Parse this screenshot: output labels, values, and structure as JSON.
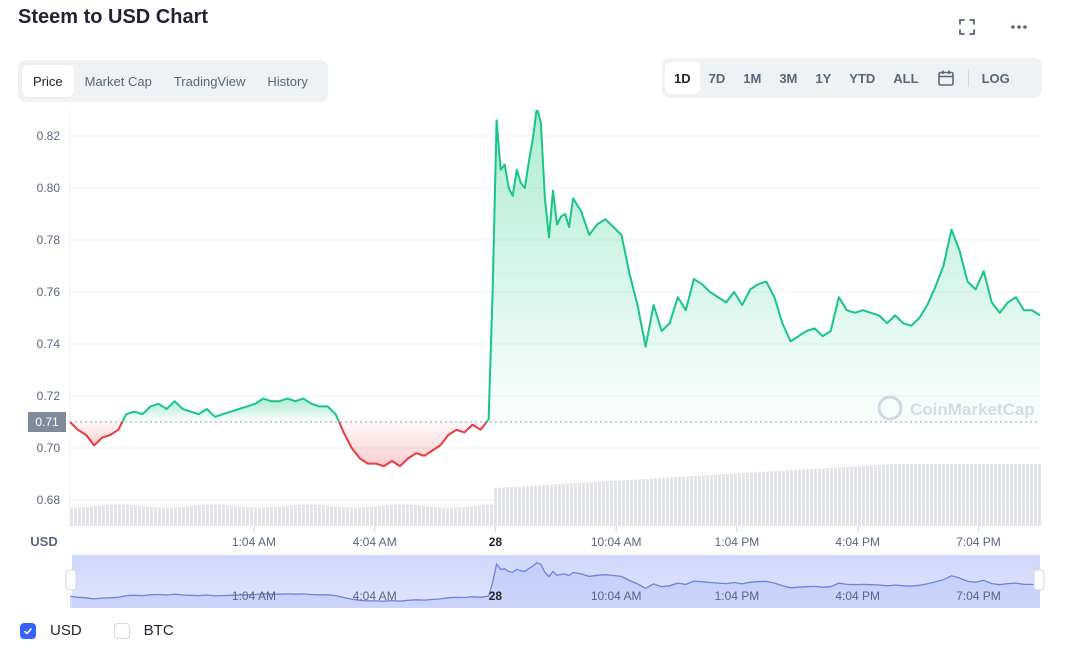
{
  "title": "Steem to USD Chart",
  "toolbar": {
    "fullscreen_icon": "fullscreen-icon",
    "more_icon": "more-icon"
  },
  "tabs": [
    {
      "label": "Price",
      "active": true
    },
    {
      "label": "Market Cap",
      "active": false
    },
    {
      "label": "TradingView",
      "active": false
    },
    {
      "label": "History",
      "active": false
    }
  ],
  "ranges": [
    {
      "label": "1D",
      "active": true
    },
    {
      "label": "7D",
      "active": false
    },
    {
      "label": "1M",
      "active": false
    },
    {
      "label": "3M",
      "active": false
    },
    {
      "label": "1Y",
      "active": false
    },
    {
      "label": "YTD",
      "active": false
    },
    {
      "label": "ALL",
      "active": false
    }
  ],
  "calendar_icon": "calendar-icon",
  "log_label": "LOG",
  "legend": [
    {
      "label": "USD",
      "checked": true
    },
    {
      "label": "BTC",
      "checked": false
    }
  ],
  "colors": {
    "up": "#16c784",
    "down": "#ea3943",
    "accent": "#3861fb",
    "grid": "#eff2f5",
    "axis_text": "#58667e"
  },
  "chart_data": {
    "type": "line",
    "y_axis_label": "USD",
    "ylim": [
      0.67,
      0.83
    ],
    "y_ticks": [
      0.68,
      0.7,
      0.72,
      0.74,
      0.76,
      0.78,
      0.8,
      0.82
    ],
    "reference_value": 0.71,
    "reference_label": "0.71",
    "x_range": [
      -3.5,
      20.6
    ],
    "x_ticks": [
      {
        "t": 1.07,
        "label": "1:04 AM"
      },
      {
        "t": 4.07,
        "label": "4:04 AM"
      },
      {
        "t": 7.07,
        "label": "28",
        "bold": true
      },
      {
        "t": 10.07,
        "label": "10:04 AM"
      },
      {
        "t": 13.07,
        "label": "1:04 PM"
      },
      {
        "t": 16.07,
        "label": "4:04 PM"
      },
      {
        "t": 19.07,
        "label": "7:04 PM"
      }
    ],
    "watermark": "CoinMarketCap",
    "series": [
      {
        "t": [
          -3.5,
          -3.3,
          -3.1,
          -2.9,
          -2.7,
          -2.5,
          -2.3,
          -2.1,
          -1.9,
          -1.7,
          -1.5,
          -1.3,
          -1.1,
          -0.9,
          -0.7,
          -0.5,
          -0.3,
          -0.1,
          0.1,
          0.3,
          0.5,
          0.7,
          0.9,
          1.1,
          1.3,
          1.5,
          1.7,
          1.9,
          2.1,
          2.3,
          2.5,
          2.7,
          2.9,
          3.1,
          3.3,
          3.5,
          3.7,
          3.9,
          4.1,
          4.3,
          4.5,
          4.7,
          4.9,
          5.1,
          5.3,
          5.5,
          5.7,
          5.9,
          6.1,
          6.3,
          6.5,
          6.7,
          6.9,
          7.0,
          7.1,
          7.2,
          7.3,
          7.4,
          7.5,
          7.6,
          7.7,
          7.8,
          7.9,
          8.0,
          8.1,
          8.2,
          8.3,
          8.4,
          8.5,
          8.6,
          8.7,
          8.8,
          8.9,
          9.0,
          9.2,
          9.4,
          9.6,
          9.8,
          10.0,
          10.2,
          10.4,
          10.6,
          10.8,
          11.0,
          11.2,
          11.4,
          11.6,
          11.8,
          12.0,
          12.2,
          12.4,
          12.6,
          12.8,
          13.0,
          13.2,
          13.4,
          13.6,
          13.8,
          14.0,
          14.2,
          14.4,
          14.6,
          14.8,
          15.0,
          15.2,
          15.4,
          15.6,
          15.8,
          16.0,
          16.2,
          16.4,
          16.6,
          16.8,
          17.0,
          17.2,
          17.4,
          17.6,
          17.8,
          18.0,
          18.2,
          18.4,
          18.6,
          18.8,
          19.0,
          19.2,
          19.4,
          19.6,
          19.8,
          20.0,
          20.2,
          20.4,
          20.6
        ],
        "price": [
          0.71,
          0.707,
          0.705,
          0.701,
          0.704,
          0.705,
          0.707,
          0.713,
          0.714,
          0.713,
          0.716,
          0.717,
          0.715,
          0.718,
          0.715,
          0.714,
          0.713,
          0.715,
          0.712,
          0.713,
          0.714,
          0.715,
          0.716,
          0.717,
          0.719,
          0.718,
          0.718,
          0.719,
          0.718,
          0.719,
          0.717,
          0.716,
          0.716,
          0.713,
          0.706,
          0.7,
          0.696,
          0.694,
          0.694,
          0.693,
          0.695,
          0.693,
          0.696,
          0.698,
          0.697,
          0.699,
          0.701,
          0.705,
          0.707,
          0.706,
          0.709,
          0.707,
          0.711,
          0.76,
          0.826,
          0.807,
          0.809,
          0.8,
          0.797,
          0.807,
          0.802,
          0.8,
          0.81,
          0.819,
          0.831,
          0.825,
          0.796,
          0.781,
          0.799,
          0.786,
          0.789,
          0.79,
          0.785,
          0.796,
          0.791,
          0.782,
          0.786,
          0.788,
          0.785,
          0.782,
          0.767,
          0.755,
          0.739,
          0.755,
          0.745,
          0.748,
          0.758,
          0.753,
          0.765,
          0.763,
          0.76,
          0.758,
          0.756,
          0.76,
          0.755,
          0.761,
          0.763,
          0.764,
          0.758,
          0.748,
          0.741,
          0.743,
          0.745,
          0.746,
          0.743,
          0.745,
          0.758,
          0.753,
          0.752,
          0.753,
          0.752,
          0.751,
          0.748,
          0.751,
          0.748,
          0.747,
          0.75,
          0.755,
          0.762,
          0.77,
          0.784,
          0.776,
          0.764,
          0.761,
          0.768,
          0.756,
          0.752,
          0.756,
          0.758,
          0.753,
          0.753,
          0.751,
          0.754,
          0.755
        ]
      }
    ]
  }
}
